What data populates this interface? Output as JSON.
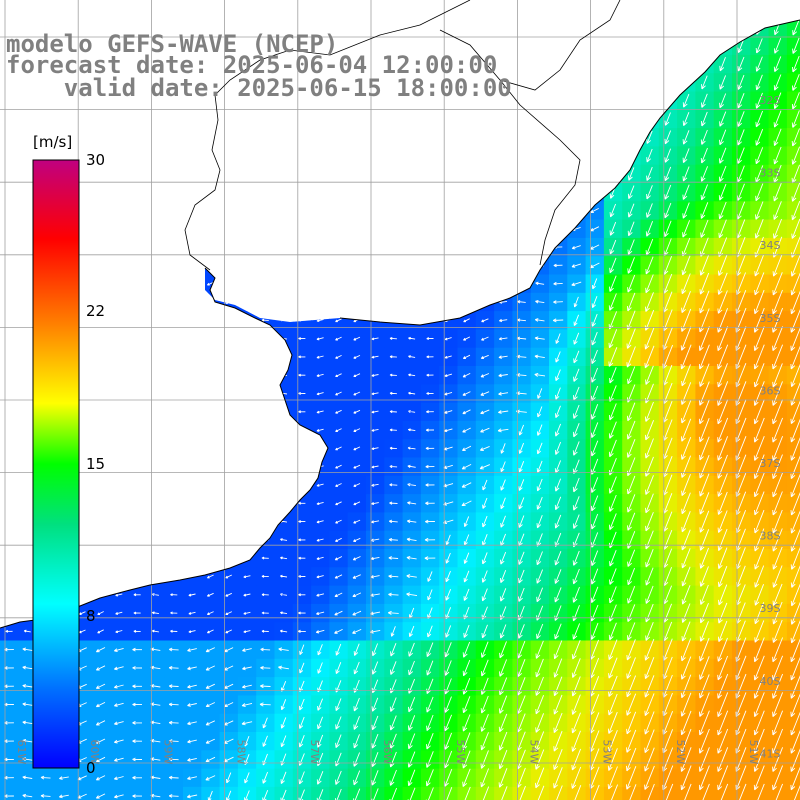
{
  "header": {
    "model_line": "modelo GEFS-WAVE (NCEP)",
    "forecast_line": "forecast date: 2025-06-04 12:00:00",
    "valid_line": "    valid date: 2025-06-15 18:00:00"
  },
  "colorbar": {
    "unit": "[m/s]",
    "ticks": [
      "30",
      "22",
      "15",
      "8",
      "0"
    ],
    "tick_values": [
      30,
      22,
      15,
      8,
      0
    ],
    "range": [
      0,
      30
    ],
    "colors": [
      "#0000ff",
      "#00a0ff",
      "#00ffff",
      "#00ff00",
      "#ffff00",
      "#ff8000",
      "#ff0000",
      "#c00080"
    ]
  },
  "map": {
    "lat_labels": [
      "32S",
      "33S",
      "34S",
      "35S",
      "36S",
      "37S",
      "38S",
      "39S",
      "40S",
      "41S"
    ],
    "lon_labels": [
      "61W",
      "60W",
      "59W",
      "58W",
      "57W",
      "56W",
      "55W",
      "54W",
      "53W",
      "52W",
      "51W"
    ],
    "lat_range": [
      -41.3,
      -31.7
    ],
    "lon_range": [
      -61.3,
      -50.4
    ],
    "wind_direction": "southwest-flowing arrows (vectors)",
    "colors": {
      "land": "#ffffff",
      "grid": "#a0a0a0",
      "coast": "#000000",
      "arrow": "#ffffff"
    }
  }
}
